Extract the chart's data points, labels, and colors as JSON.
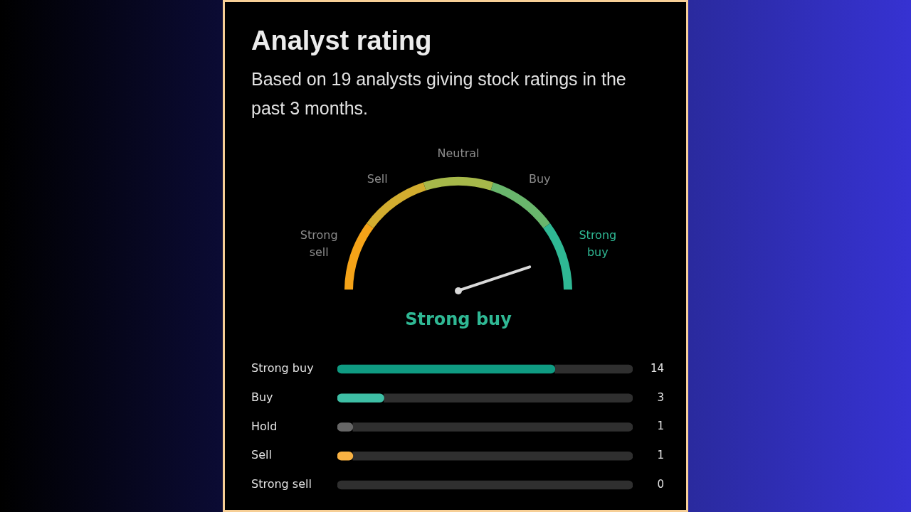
{
  "chart_data": [
    {
      "type": "donut",
      "title": "Analyst rating",
      "subtitle": "Based on 19 analysts giving stock ratings in the past 3 months.",
      "categories": [
        "Strong sell",
        "Sell",
        "Neutral",
        "Buy",
        "Strong buy"
      ],
      "values": [
        20,
        20,
        20,
        20,
        20
      ],
      "colors": [
        "#f5a318",
        "#d2ad2f",
        "#a6b84a",
        "#69b66c",
        "#2fb894"
      ],
      "needle": "Strong buy"
    },
    {
      "type": "bar",
      "orientation": "horizontal",
      "stacked": true,
      "categories": [
        "Strong buy",
        "Buy",
        "Hold",
        "Sell",
        "Strong sell"
      ],
      "series": [
        {
          "colors": [
            "#0f9b82",
            "#3ebfa5",
            "#666666",
            "#f9b243",
            null
          ],
          "values": [
            14,
            3,
            1,
            1,
            0
          ],
          "value_labels": [
            "14",
            "3",
            "1",
            "1",
            "0"
          ]
        },
        {
          "color": "#2f2f2f",
          "values": [
            5,
            16,
            18,
            18,
            19
          ]
        }
      ],
      "xlim": [
        0,
        19
      ],
      "tick_labels": "y"
    }
  ]
}
